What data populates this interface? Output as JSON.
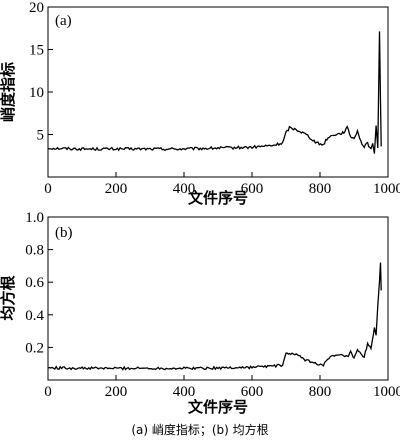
{
  "chart_data": [
    {
      "type": "line",
      "panel_label": "(a)",
      "xlabel": "文件序号",
      "ylabel": "峭度指标",
      "xlim": [
        0,
        1000
      ],
      "ylim": [
        0,
        20
      ],
      "xticks": [
        0,
        200,
        400,
        600,
        800,
        1000
      ],
      "yticks": [
        5,
        10,
        15,
        20
      ],
      "xtick_labels": [
        "0",
        "200",
        "400",
        "600",
        "800",
        "1000"
      ],
      "ytick_labels": [
        "5",
        "10",
        "15",
        "20"
      ],
      "grid": false,
      "series": [
        {
          "points": [
            [
              0,
              3.4
            ],
            [
              100,
              3.3
            ],
            [
              200,
              3.3
            ],
            [
              300,
              3.3
            ],
            [
              400,
              3.3
            ],
            [
              500,
              3.4
            ],
            [
              600,
              3.5
            ],
            [
              660,
              3.7
            ],
            [
              690,
              4.0
            ],
            [
              700,
              5.2
            ],
            [
              710,
              5.8
            ],
            [
              730,
              5.6
            ],
            [
              760,
              5.0
            ],
            [
              790,
              4.0
            ],
            [
              810,
              3.8
            ],
            [
              820,
              4.5
            ],
            [
              840,
              5.0
            ],
            [
              860,
              5.1
            ],
            [
              870,
              5.3
            ],
            [
              880,
              5.8
            ],
            [
              890,
              4.8
            ],
            [
              900,
              4.5
            ],
            [
              910,
              5.5
            ],
            [
              920,
              4.2
            ],
            [
              930,
              3.5
            ],
            [
              940,
              4.0
            ],
            [
              950,
              3.2
            ],
            [
              955,
              3.8
            ],
            [
              960,
              2.8
            ],
            [
              965,
              6.0
            ],
            [
              970,
              3.5
            ],
            [
              975,
              17.0
            ],
            [
              978,
              9.0
            ],
            [
              980,
              3.6
            ]
          ]
        }
      ]
    },
    {
      "type": "line",
      "panel_label": "(b)",
      "xlabel": "文件序号",
      "ylabel": "均方根",
      "xlim": [
        0,
        1000
      ],
      "ylim": [
        0,
        1.0
      ],
      "xticks": [
        0,
        200,
        400,
        600,
        800,
        1000
      ],
      "yticks": [
        0.2,
        0.4,
        0.6,
        0.8,
        1.0
      ],
      "xtick_labels": [
        "0",
        "200",
        "400",
        "600",
        "800",
        "1000"
      ],
      "ytick_labels": [
        "0.2",
        "0.4",
        "0.6",
        "0.8",
        "1.0"
      ],
      "grid": false,
      "series": [
        {
          "points": [
            [
              0,
              0.075
            ],
            [
              100,
              0.072
            ],
            [
              200,
              0.072
            ],
            [
              300,
              0.072
            ],
            [
              400,
              0.072
            ],
            [
              500,
              0.074
            ],
            [
              600,
              0.078
            ],
            [
              650,
              0.085
            ],
            [
              690,
              0.09
            ],
            [
              700,
              0.16
            ],
            [
              710,
              0.165
            ],
            [
              730,
              0.155
            ],
            [
              760,
              0.12
            ],
            [
              790,
              0.1
            ],
            [
              810,
              0.095
            ],
            [
              830,
              0.14
            ],
            [
              850,
              0.15
            ],
            [
              870,
              0.15
            ],
            [
              880,
              0.14
            ],
            [
              890,
              0.17
            ],
            [
              900,
              0.13
            ],
            [
              910,
              0.18
            ],
            [
              920,
              0.16
            ],
            [
              930,
              0.14
            ],
            [
              940,
              0.22
            ],
            [
              950,
              0.2
            ],
            [
              960,
              0.32
            ],
            [
              965,
              0.27
            ],
            [
              970,
              0.45
            ],
            [
              975,
              0.6
            ],
            [
              978,
              0.72
            ],
            [
              980,
              0.55
            ]
          ]
        }
      ]
    }
  ],
  "caption": "(a)  峭度指标；(b)  均方根"
}
